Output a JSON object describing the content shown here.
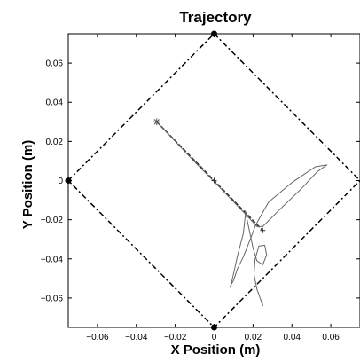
{
  "chart_data": {
    "type": "line",
    "title": "Trajectory",
    "xlabel": "X Position (m)",
    "ylabel": "Y Position (m)",
    "xlim": [
      -0.075,
      0.075
    ],
    "ylim": [
      -0.075,
      0.075
    ],
    "grid": false,
    "xticks": [
      -0.06,
      -0.04,
      -0.02,
      0,
      0.02,
      0.04,
      0.06
    ],
    "yticks": [
      -0.06,
      -0.04,
      -0.02,
      0,
      0.02,
      0.04,
      0.06
    ],
    "xtick_labels": [
      "−0.06",
      "−0.04",
      "−0.02",
      "0",
      "0.02",
      "0.04",
      "0.06"
    ],
    "ytick_labels": [
      "−0.06",
      "−0.04",
      "−0.02",
      "0",
      "0.02",
      "0.04",
      "0.06"
    ],
    "colors": {
      "axes": "#000000",
      "boundary": "#000000",
      "target_path": "#333333",
      "trajectory": "#666666"
    },
    "series": [
      {
        "style": "dash-dot",
        "x": [
          0,
          0.075,
          0,
          -0.075,
          0
        ],
        "y": [
          0.075,
          0,
          -0.075,
          0,
          0.075
        ]
      },
      {
        "style": "dashed-dark",
        "x": [
          -0.0295,
          0.0,
          0.025
        ],
        "y": [
          0.03,
          0.0,
          -0.0255
        ]
      },
      {
        "style": "thin-solid",
        "x": [
          -0.0295,
          -0.01,
          0.0,
          0.015,
          0.022,
          0.025,
          0.033,
          0.045,
          0.053,
          0.058,
          0.052,
          0.04,
          0.028,
          0.024,
          0.021,
          0.019,
          0.017,
          0.015,
          0.012,
          0.01,
          0.008,
          0.0085,
          0.01,
          0.012,
          0.015,
          0.016,
          0.016,
          0.018,
          0.02,
          0.022,
          0.025,
          0.027,
          0.026,
          0.023,
          0.021,
          0.0205,
          0.022,
          0.024,
          0.025,
          0.0245
        ],
        "y": [
          0.03,
          0.0095,
          -0.0005,
          -0.016,
          -0.0235,
          -0.0235,
          -0.0155,
          -0.004,
          0.0045,
          0.008,
          0.007,
          -0.001,
          -0.011,
          -0.018,
          -0.0235,
          -0.029,
          -0.034,
          -0.039,
          -0.045,
          -0.051,
          -0.0545,
          -0.054,
          -0.0475,
          -0.0385,
          -0.027,
          -0.018,
          -0.0155,
          -0.025,
          -0.0345,
          -0.041,
          -0.043,
          -0.038,
          -0.033,
          -0.0335,
          -0.0405,
          -0.048,
          -0.0555,
          -0.061,
          -0.064,
          -0.061
        ]
      }
    ],
    "markers": [
      {
        "symbol": "star",
        "x": -0.0295,
        "y": 0.03
      },
      {
        "symbol": "circle",
        "x": 0,
        "y": 0.075
      },
      {
        "symbol": "circle",
        "x": 0,
        "y": -0.075
      },
      {
        "symbol": "circle",
        "x": -0.075,
        "y": 0
      },
      {
        "symbol": "plus",
        "x": 0,
        "y": 0
      },
      {
        "symbol": "plus",
        "x": 0.025,
        "y": -0.0255
      }
    ]
  }
}
